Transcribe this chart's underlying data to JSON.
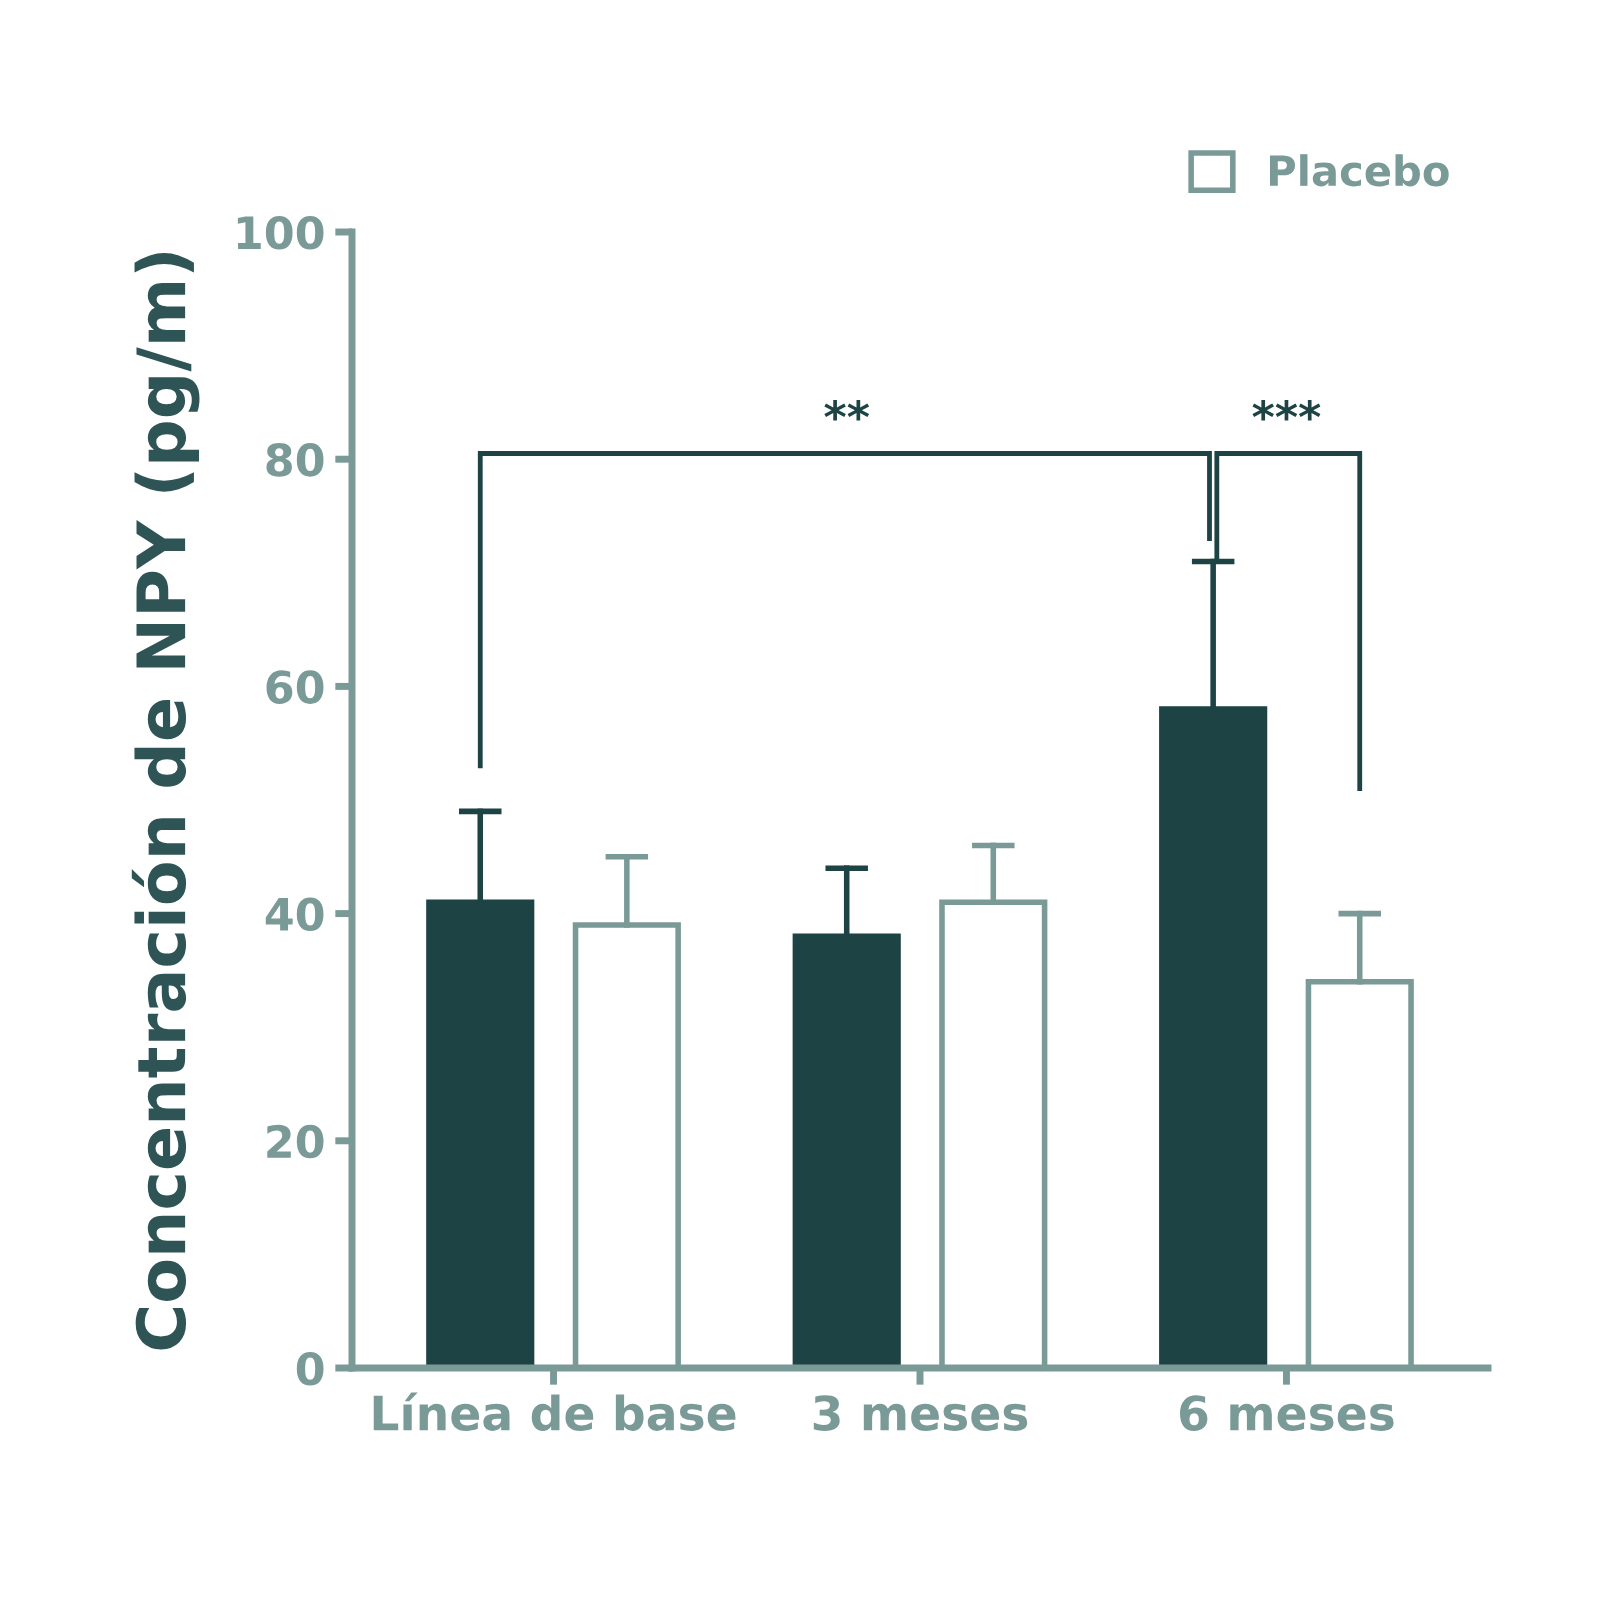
{
  "chart_data": {
    "type": "bar",
    "ylabel": "Concentración de NPY (pg/m)",
    "categories": [
      "Línea de base",
      "3 meses",
      "6 meses"
    ],
    "series": [
      {
        "color": "#1d4345",
        "values": [
          41,
          38,
          58
        ],
        "errors": [
          [
            41,
            49
          ],
          [
            38,
            44
          ],
          [
            58,
            71
          ]
        ]
      },
      {
        "name": "Placebo",
        "color": "#ffffff",
        "values": [
          39,
          41,
          34
        ],
        "errors": [
          [
            39,
            45
          ],
          [
            41,
            46
          ],
          [
            34,
            40
          ]
        ]
      }
    ],
    "ylim": [
      0,
      100
    ],
    "yticks": [
      0,
      20,
      40,
      60,
      80,
      100
    ],
    "grid": false,
    "legend": "top right",
    "annotations": [
      "**",
      "***"
    ]
  }
}
